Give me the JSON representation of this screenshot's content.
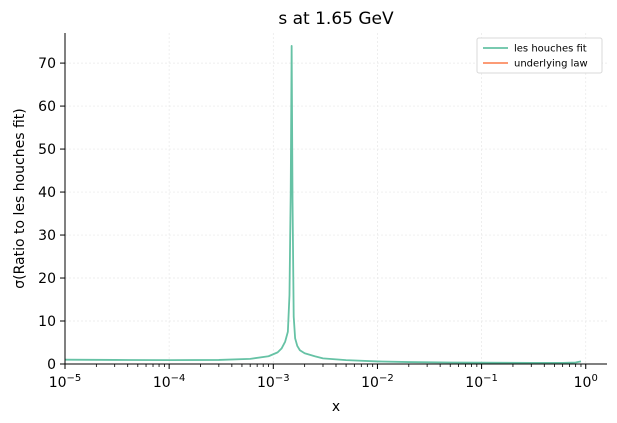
{
  "chart_data": {
    "type": "line",
    "title": "s at 1.65 GeV",
    "xlabel": "x",
    "ylabel": "σ(Ratio to les houches fit)",
    "xscale": "log",
    "xlim": [
      1e-05,
      1.6
    ],
    "ylim": [
      0,
      77
    ],
    "x_tick_values": [
      1e-05,
      0.0001,
      0.001,
      0.01,
      0.1,
      1
    ],
    "x_tick_labels": [
      {
        "base": "10",
        "exp": "−5"
      },
      {
        "base": "10",
        "exp": "−4"
      },
      {
        "base": "10",
        "exp": "−3"
      },
      {
        "base": "10",
        "exp": "−2"
      },
      {
        "base": "10",
        "exp": "−1"
      },
      {
        "base": "10",
        "exp": "0"
      }
    ],
    "y_ticks": [
      0,
      10,
      20,
      30,
      40,
      50,
      60,
      70
    ],
    "grid": true,
    "legend_position": "top-right",
    "series": [
      {
        "name": "les houches fit",
        "color": "#66c2a5",
        "x": [
          1e-05,
          3e-05,
          0.0001,
          0.0003,
          0.0006,
          0.0009,
          0.0011,
          0.0012,
          0.0013,
          0.00138,
          0.00143,
          0.00147,
          0.0015,
          0.00153,
          0.00157,
          0.00162,
          0.0017,
          0.0018,
          0.002,
          0.0025,
          0.003,
          0.005,
          0.01,
          0.02,
          0.05,
          0.1,
          0.3,
          0.6,
          0.8,
          0.9
        ],
        "values": [
          1.0,
          0.95,
          0.9,
          0.95,
          1.2,
          1.8,
          2.7,
          3.6,
          5.2,
          7.5,
          16.0,
          40.0,
          74.0,
          38.0,
          11.0,
          6.0,
          4.2,
          3.2,
          2.5,
          1.8,
          1.3,
          0.9,
          0.6,
          0.45,
          0.35,
          0.3,
          0.25,
          0.25,
          0.35,
          0.6
        ]
      },
      {
        "name": "underlying law",
        "color": "#fc8d62",
        "x": [],
        "values": []
      }
    ]
  }
}
